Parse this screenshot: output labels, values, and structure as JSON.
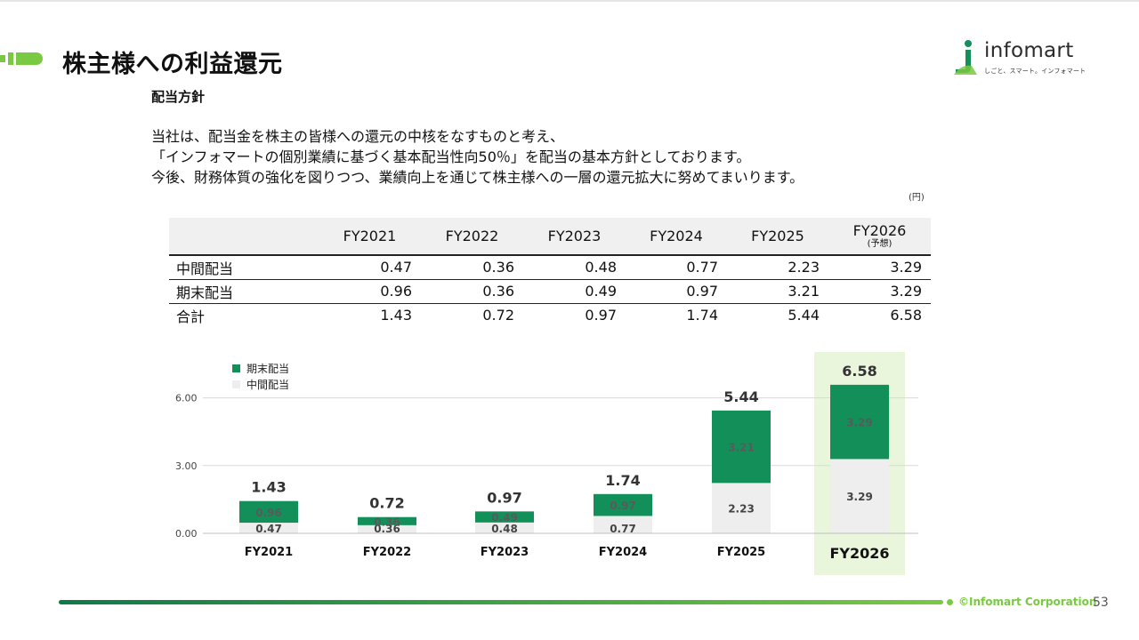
{
  "header": {
    "title": "株主様への利益還元",
    "logo_word": "infomart",
    "logo_tagline": "しごと、スマート。インフォマート"
  },
  "section": {
    "title": "配当方針",
    "body_lines": [
      "当社は、配当金を株主の皆様への還元の中核をなすものと考え、",
      "「インフォマートの個別業績に基づく基本配当性向50％」を配当の基本方針としております。",
      "今後、財務体質の強化を図りつつ、業績向上を通じて株主様への一層の還元拡大に努めてまいります。"
    ]
  },
  "table": {
    "unit": "(円)",
    "columns": [
      "FY2021",
      "FY2022",
      "FY2023",
      "FY2024",
      "FY2025",
      "FY2026"
    ],
    "forecast_note": "(予想)",
    "rows": [
      {
        "label": "中間配当",
        "values": [
          "0.47",
          "0.36",
          "0.48",
          "0.77",
          "2.23",
          "3.29"
        ]
      },
      {
        "label": "期末配当",
        "values": [
          "0.96",
          "0.36",
          "0.49",
          "0.97",
          "3.21",
          "3.29"
        ]
      },
      {
        "label": "合計",
        "values": [
          "1.43",
          "0.72",
          "0.97",
          "1.74",
          "5.44",
          "6.58"
        ]
      }
    ]
  },
  "chart_data": {
    "type": "bar",
    "stacked": true,
    "categories": [
      "FY2021",
      "FY2022",
      "FY2023",
      "FY2024",
      "FY2025",
      "FY2026"
    ],
    "series": [
      {
        "name": "中間配当",
        "values": [
          0.47,
          0.36,
          0.48,
          0.77,
          2.23,
          3.29
        ],
        "color": "#eeeeee"
      },
      {
        "name": "期末配当",
        "values": [
          0.96,
          0.36,
          0.49,
          0.97,
          3.21,
          3.29
        ],
        "color": "#13905a"
      }
    ],
    "totals": [
      "1.43",
      "0.72",
      "0.97",
      "1.74",
      "5.44",
      "6.58"
    ],
    "yticks": [
      "0.00",
      "3.00",
      "6.00"
    ],
    "ylim": [
      0,
      6.58
    ],
    "legend_position": "top-left",
    "highlight_category": "FY2026",
    "highlight_color": "#eaf6dc",
    "grid": true
  },
  "footer": {
    "copyright": "©Infomart Corporation",
    "page_number": "53"
  },
  "colors": {
    "accent_green": "#13905a",
    "brand_light_green": "#7ac943"
  }
}
